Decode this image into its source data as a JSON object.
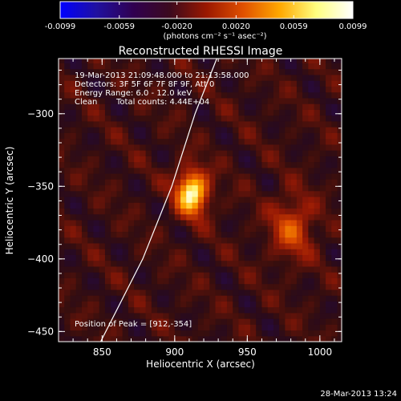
{
  "colorbar": {
    "ticks": [
      "-0.0099",
      "-0.0059",
      "-0.0020",
      "0.0020",
      "0.0059",
      "0.0099"
    ],
    "tick_values": [
      -0.0099,
      -0.0059,
      -0.002,
      0.002,
      0.0059,
      0.0099
    ],
    "range": [
      -0.0099,
      0.0099
    ],
    "units": "(photons cm⁻² s⁻¹ asec⁻²)",
    "colors": [
      "#0000ff",
      "#2010a0",
      "#300050",
      "#3c0a1e",
      "#9a1800",
      "#e05000",
      "#ffa800",
      "#ffff80",
      "#ffffff"
    ]
  },
  "annotations": {
    "time_range": "19-Mar-2013 21:09:48.000 to 21:13:58.000",
    "detectors": "Detectors: 3F 5F 6F 7F 8F 9F, Att 0",
    "energy": "Energy Range: 6.0 - 12.0 keV",
    "method": "Clean",
    "counts": "Total counts: 4.44E+04",
    "peak": "Position of Peak = [912,-354]"
  },
  "footer": {
    "timestamp": "28-Mar-2013 13:24"
  },
  "chart_data": {
    "type": "heatmap",
    "title": "Reconstructed RHESSI Image",
    "xlabel": "Heliocentric X (arcsec)",
    "ylabel": "Heliocentric Y (arcsec)",
    "xlim": [
      820,
      1015
    ],
    "ylim": [
      -457,
      -262
    ],
    "x_ticks": [
      850,
      900,
      950,
      1000
    ],
    "y_ticks": [
      -300,
      -350,
      -400,
      -450
    ],
    "x_tick_labels": [
      "850",
      "900",
      "950",
      "1000"
    ],
    "y_tick_labels": [
      "−300",
      "−350",
      "−400",
      "−450"
    ],
    "value_range": [
      -0.0099,
      0.0099
    ],
    "sources": [
      {
        "x": 912,
        "y": -354,
        "value": 0.0099,
        "sigma": 9
      },
      {
        "x": 981,
        "y": -378,
        "value": 0.0045,
        "sigma": 12
      }
    ],
    "limb": [
      [
        849,
        -457
      ],
      [
        878,
        -400
      ],
      [
        898,
        -350
      ],
      [
        914,
        -300
      ],
      [
        929,
        -262
      ]
    ]
  }
}
